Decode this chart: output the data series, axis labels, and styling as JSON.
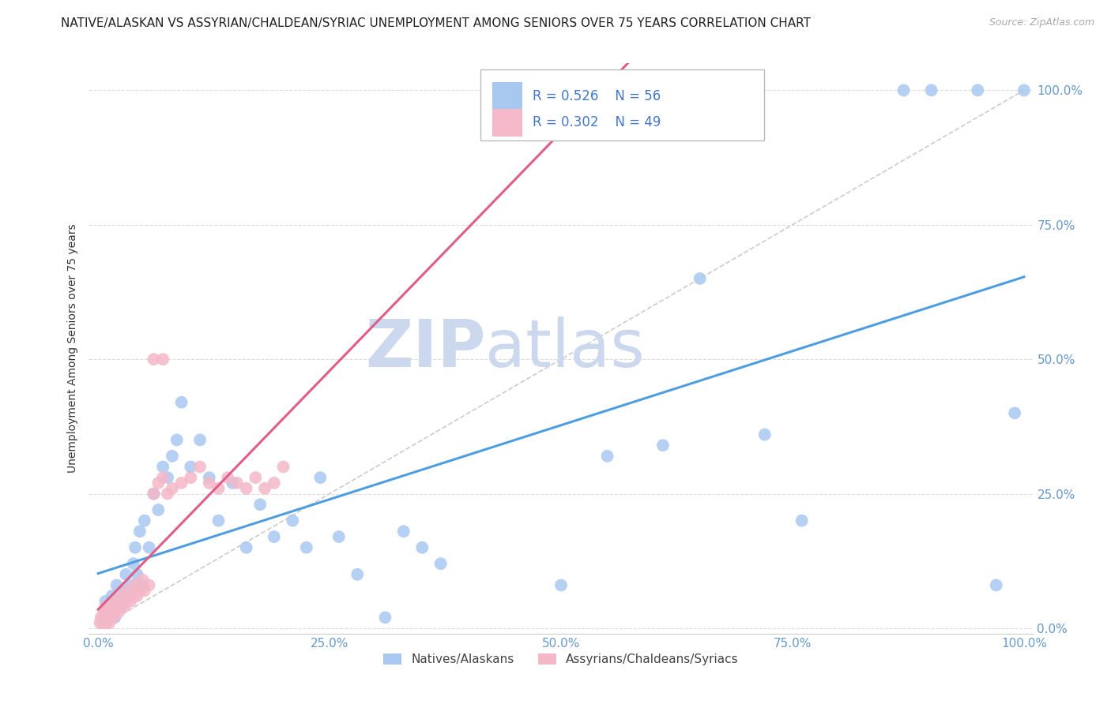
{
  "title": "NATIVE/ALASKAN VS ASSYRIAN/CHALDEAN/SYRIAC UNEMPLOYMENT AMONG SENIORS OVER 75 YEARS CORRELATION CHART",
  "source": "Source: ZipAtlas.com",
  "xlabel_ticks": [
    "0.0%",
    "25.0%",
    "50.0%",
    "75.0%",
    "100.0%"
  ],
  "ylabel_ticks": [
    "0.0%",
    "25.0%",
    "50.0%",
    "75.0%",
    "100.0%"
  ],
  "ylabel": "Unemployment Among Seniors over 75 years",
  "legend_label1": "Natives/Alaskans",
  "legend_label2": "Assyrians/Chaldeans/Syriacs",
  "R1": 0.526,
  "N1": 56,
  "R2": 0.302,
  "N2": 49,
  "color1": "#a8c8f0",
  "color2": "#f4b8c8",
  "line_color1": "#4d9de0",
  "line_color2": "#e05d8a",
  "diag_color": "#cccccc",
  "watermark_zip": "ZIP",
  "watermark_atlas": "atlas",
  "watermark_color_zip": "#ccd8ee",
  "watermark_color_atlas": "#ccd8ee",
  "background_color": "#ffffff",
  "title_fontsize": 11,
  "source_fontsize": 9,
  "blue_x": [
    0.005,
    0.008,
    0.01,
    0.012,
    0.015,
    0.018,
    0.02,
    0.022,
    0.025,
    0.028,
    0.03,
    0.033,
    0.035,
    0.038,
    0.04,
    0.042,
    0.045,
    0.048,
    0.05,
    0.055,
    0.06,
    0.065,
    0.07,
    0.075,
    0.08,
    0.085,
    0.09,
    0.1,
    0.11,
    0.12,
    0.13,
    0.145,
    0.16,
    0.175,
    0.19,
    0.21,
    0.225,
    0.24,
    0.26,
    0.28,
    0.31,
    0.33,
    0.35,
    0.37,
    0.5,
    0.55,
    0.61,
    0.65,
    0.72,
    0.76,
    0.87,
    0.9,
    0.95,
    0.97,
    0.99,
    1.0
  ],
  "blue_y": [
    0.02,
    0.05,
    0.03,
    0.04,
    0.06,
    0.02,
    0.08,
    0.05,
    0.04,
    0.07,
    0.1,
    0.06,
    0.08,
    0.12,
    0.15,
    0.1,
    0.18,
    0.08,
    0.2,
    0.15,
    0.25,
    0.22,
    0.3,
    0.28,
    0.32,
    0.35,
    0.42,
    0.3,
    0.35,
    0.28,
    0.2,
    0.27,
    0.15,
    0.23,
    0.17,
    0.2,
    0.15,
    0.28,
    0.17,
    0.1,
    0.02,
    0.18,
    0.15,
    0.12,
    0.08,
    0.32,
    0.34,
    0.65,
    0.36,
    0.2,
    1.0,
    1.0,
    1.0,
    0.08,
    0.4,
    1.0
  ],
  "pink_x": [
    0.002,
    0.003,
    0.005,
    0.006,
    0.007,
    0.008,
    0.009,
    0.01,
    0.011,
    0.012,
    0.013,
    0.014,
    0.015,
    0.016,
    0.017,
    0.018,
    0.02,
    0.022,
    0.025,
    0.028,
    0.03,
    0.032,
    0.035,
    0.038,
    0.04,
    0.042,
    0.045,
    0.048,
    0.05,
    0.055,
    0.06,
    0.065,
    0.07,
    0.075,
    0.08,
    0.09,
    0.1,
    0.11,
    0.12,
    0.13,
    0.14,
    0.15,
    0.16,
    0.17,
    0.18,
    0.19,
    0.2,
    0.06,
    0.07
  ],
  "pink_y": [
    0.01,
    0.02,
    0.01,
    0.03,
    0.02,
    0.04,
    0.01,
    0.03,
    0.02,
    0.01,
    0.03,
    0.02,
    0.04,
    0.02,
    0.03,
    0.05,
    0.04,
    0.03,
    0.06,
    0.04,
    0.05,
    0.07,
    0.05,
    0.06,
    0.08,
    0.06,
    0.07,
    0.09,
    0.07,
    0.08,
    0.25,
    0.27,
    0.28,
    0.25,
    0.26,
    0.27,
    0.28,
    0.3,
    0.27,
    0.26,
    0.28,
    0.27,
    0.26,
    0.28,
    0.26,
    0.27,
    0.3,
    0.5,
    0.5
  ]
}
